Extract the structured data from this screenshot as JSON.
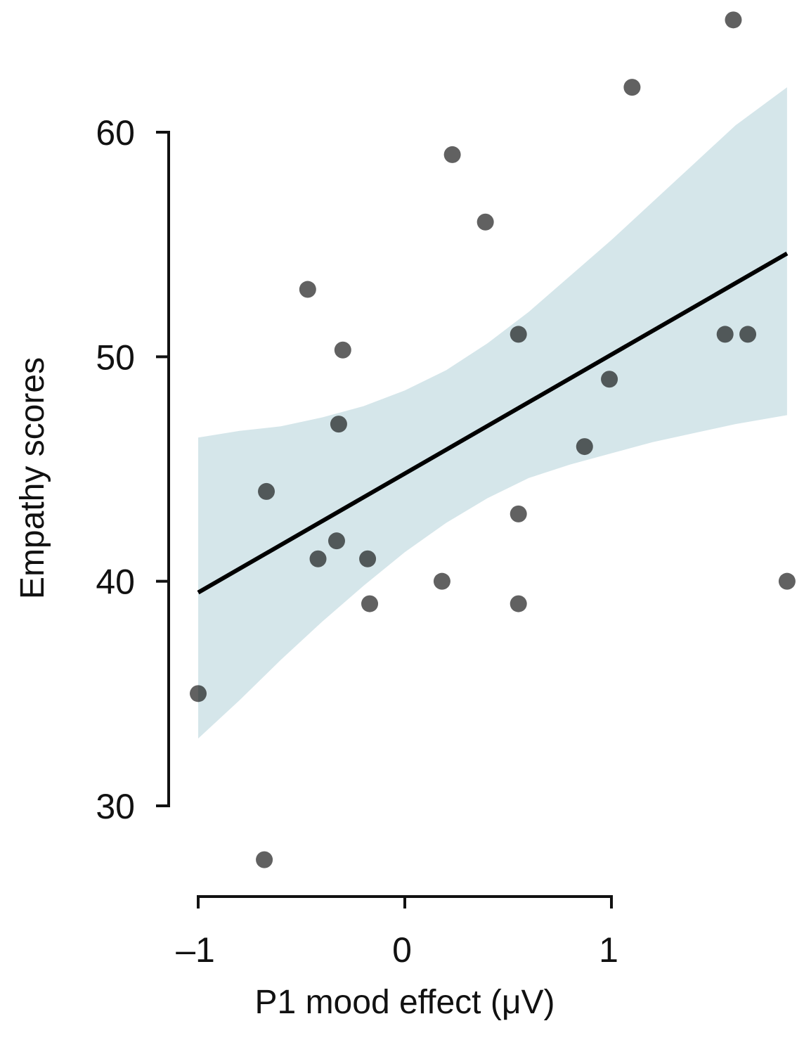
{
  "chart_data": {
    "type": "scatter",
    "title": "",
    "xlabel": "P1 mood effect (μV)",
    "ylabel": "Empathy scores",
    "xlim": [
      -1.0,
      1.85
    ],
    "ylim": [
      30,
      60
    ],
    "x_ticks": [
      -1,
      0,
      1
    ],
    "x_tick_labels": [
      "–1",
      "0",
      "1"
    ],
    "y_ticks": [
      30,
      40,
      50,
      60
    ],
    "y_tick_labels": [
      "30",
      "40",
      "50",
      "60"
    ],
    "grid": false,
    "legend": "none",
    "colors": {
      "point": "#000000",
      "line": "#000000",
      "band": "#d5e6ea",
      "axis": "#111111"
    },
    "points": [
      {
        "x": -1.0,
        "y": 35.0
      },
      {
        "x": -0.68,
        "y": 27.6
      },
      {
        "x": -0.67,
        "y": 44.0
      },
      {
        "x": -0.47,
        "y": 53.0
      },
      {
        "x": -0.42,
        "y": 41.0
      },
      {
        "x": -0.33,
        "y": 41.8
      },
      {
        "x": -0.32,
        "y": 47.0
      },
      {
        "x": -0.3,
        "y": 50.3
      },
      {
        "x": -0.18,
        "y": 41.0
      },
      {
        "x": -0.17,
        "y": 39.0
      },
      {
        "x": 0.18,
        "y": 40.0
      },
      {
        "x": 0.23,
        "y": 59.0
      },
      {
        "x": 0.39,
        "y": 56.0
      },
      {
        "x": 0.55,
        "y": 51.0
      },
      {
        "x": 0.55,
        "y": 43.0
      },
      {
        "x": 0.55,
        "y": 39.0
      },
      {
        "x": 0.87,
        "y": 46.0
      },
      {
        "x": 0.99,
        "y": 49.0
      },
      {
        "x": 1.1,
        "y": 62.0
      },
      {
        "x": 1.55,
        "y": 51.0
      },
      {
        "x": 1.59,
        "y": 65.0
      },
      {
        "x": 1.66,
        "y": 51.0
      },
      {
        "x": 1.85,
        "y": 40.0
      }
    ],
    "regression": {
      "x": [
        -1.0,
        1.85
      ],
      "y": [
        39.5,
        54.6
      ]
    },
    "confidence_band": {
      "x": [
        -1.0,
        -0.8,
        -0.6,
        -0.4,
        -0.2,
        0.0,
        0.2,
        0.4,
        0.6,
        0.8,
        1.0,
        1.2,
        1.4,
        1.6,
        1.85
      ],
      "upper": [
        46.4,
        46.7,
        46.9,
        47.3,
        47.8,
        48.5,
        49.4,
        50.6,
        52.0,
        53.6,
        55.2,
        56.9,
        58.6,
        60.3,
        62.0
      ],
      "lower": [
        33.0,
        34.7,
        36.5,
        38.2,
        39.8,
        41.3,
        42.6,
        43.7,
        44.6,
        45.2,
        45.7,
        46.2,
        46.6,
        47.0,
        47.4
      ]
    }
  }
}
